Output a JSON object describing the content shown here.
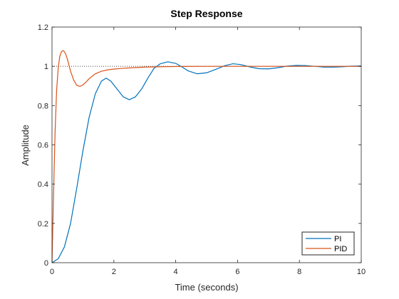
{
  "chart_data": {
    "type": "line",
    "title": "Step Response",
    "xlabel": "Time (seconds)",
    "ylabel": "Amplitude",
    "xlim": [
      0,
      10
    ],
    "ylim": [
      0,
      1.2
    ],
    "xticks": [
      0,
      2,
      4,
      6,
      8,
      10
    ],
    "yticks": [
      0,
      0.2,
      0.4,
      0.6,
      0.8,
      1,
      1.2
    ],
    "xtick_labels": [
      "0",
      "2",
      "4",
      "6",
      "8",
      "10"
    ],
    "ytick_labels": [
      "0",
      "0.2",
      "0.4",
      "0.6",
      "0.8",
      "1",
      "1.2"
    ],
    "grid": false,
    "legend_position": "bottom-right",
    "reference_line": {
      "y": 1,
      "style": "dotted",
      "color": "#404040"
    },
    "series": [
      {
        "name": "PI",
        "color": "#0072BD",
        "x": [
          0,
          0.2,
          0.4,
          0.6,
          0.8,
          1.0,
          1.2,
          1.4,
          1.6,
          1.75,
          1.9,
          2.1,
          2.3,
          2.5,
          2.7,
          2.9,
          3.1,
          3.3,
          3.5,
          3.75,
          4.0,
          4.2,
          4.4,
          4.7,
          5.0,
          5.3,
          5.6,
          5.85,
          6.1,
          6.4,
          6.7,
          7.0,
          7.3,
          7.6,
          7.9,
          8.2,
          8.5,
          8.8,
          9.1,
          9.4,
          9.7,
          10.0
        ],
        "y": [
          0,
          0.02,
          0.08,
          0.2,
          0.38,
          0.57,
          0.74,
          0.86,
          0.925,
          0.94,
          0.925,
          0.885,
          0.845,
          0.83,
          0.845,
          0.885,
          0.94,
          0.99,
          1.013,
          1.023,
          1.015,
          0.997,
          0.977,
          0.962,
          0.967,
          0.985,
          1.004,
          1.013,
          1.009,
          0.997,
          0.988,
          0.987,
          0.993,
          1.001,
          1.005,
          1.004,
          1.0,
          0.996,
          0.996,
          0.998,
          1.001,
          1.002
        ]
      },
      {
        "name": "PID",
        "color": "#D95319",
        "x": [
          0,
          0.05,
          0.1,
          0.15,
          0.2,
          0.25,
          0.3,
          0.35,
          0.4,
          0.45,
          0.5,
          0.55,
          0.6,
          0.7,
          0.8,
          0.9,
          1.0,
          1.1,
          1.2,
          1.4,
          1.6,
          1.8,
          2.0,
          2.3,
          2.6,
          3.0,
          3.5,
          4.0,
          5.0,
          6.0,
          8.0,
          10.0
        ],
        "y": [
          0,
          0.35,
          0.67,
          0.88,
          0.99,
          1.05,
          1.073,
          1.08,
          1.075,
          1.06,
          1.035,
          1.005,
          0.975,
          0.93,
          0.903,
          0.898,
          0.905,
          0.92,
          0.937,
          0.962,
          0.975,
          0.982,
          0.986,
          0.99,
          0.993,
          0.996,
          0.998,
          0.999,
          1.0,
          1.0,
          1.0,
          1.0
        ]
      }
    ]
  }
}
